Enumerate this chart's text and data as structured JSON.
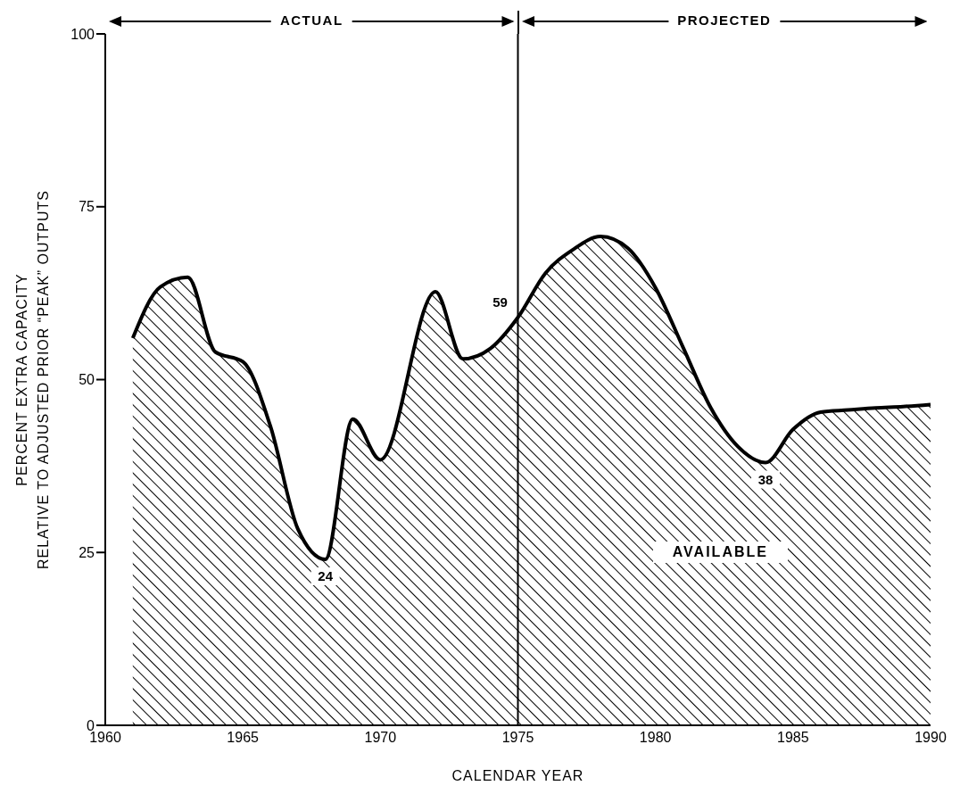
{
  "chart_data": {
    "type": "area",
    "xlabel": "CALENDAR YEAR",
    "ylabel": "PERCENT EXTRA CAPACITY\nRELATIVE TO ADJUSTED PRIOR “PEAK” OUTPUTS",
    "annotations": [
      "ACTUAL",
      "PROJECTED",
      "AVAILABLE"
    ],
    "x": [
      1961,
      1962,
      1963,
      1964,
      1965,
      1966,
      1967,
      1968,
      1969,
      1970,
      1972,
      1973,
      1974,
      1975,
      1976,
      1977,
      1978,
      1979,
      1980,
      1981,
      1982,
      1983,
      1984,
      1985,
      1986,
      1987,
      1988,
      1989,
      1990
    ],
    "series": [
      {
        "color": "#000000",
        "values": [
          56,
          63.4,
          64.8,
          54,
          52.6,
          43.3,
          28.4,
          24,
          44.3,
          38.4,
          62.7,
          53,
          54.5,
          59,
          65.4,
          68.8,
          70.7,
          69,
          63.3,
          54.7,
          46,
          40.3,
          38,
          42.8,
          45.3,
          45.6,
          45.9,
          46.1,
          46.4
        ],
        "value_labels": [
          null,
          null,
          null,
          null,
          null,
          null,
          null,
          "24",
          null,
          null,
          null,
          null,
          null,
          "59",
          null,
          null,
          null,
          null,
          null,
          null,
          null,
          null,
          "38",
          null,
          null,
          null,
          null,
          null,
          null
        ]
      }
    ],
    "xlim": [
      1960,
      1990
    ],
    "xticks": [
      1960,
      1965,
      1970,
      1975,
      1980,
      1985,
      1990
    ],
    "ylim": [
      0,
      100
    ],
    "yticks": [
      0,
      25,
      50,
      75,
      100
    ],
    "ref_lines": [
      {
        "axis": "x",
        "value": 1975,
        "color": "#000000"
      }
    ],
    "grid": false
  }
}
